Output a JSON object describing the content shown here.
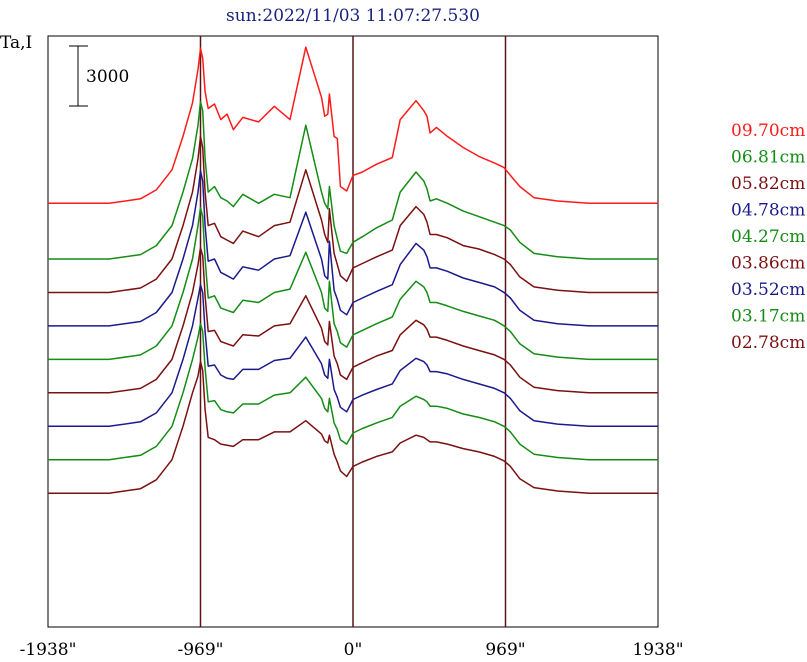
{
  "chart_data": {
    "type": "line",
    "title": "sun:2022/11/03 11:07:27.530",
    "ylabel": "Ta,I",
    "xlabel": "",
    "scale_bar_label": "3000",
    "scale_bar_value": 3000,
    "xlim": [
      -1938,
      1938
    ],
    "ylim": [
      -1000,
      52000
    ],
    "x_ticks": [
      {
        "value": -1938,
        "label": "-1938\""
      },
      {
        "value": -969,
        "label": "-969\""
      },
      {
        "value": 0,
        "label": "0\""
      },
      {
        "value": 969,
        "label": "969\""
      },
      {
        "value": 1938,
        "label": "1938\""
      }
    ],
    "vertical_lines": [
      -969,
      0,
      969
    ],
    "vertical_line_color": "#5a1414",
    "legend_position": "right",
    "x": [
      -1938,
      -1550,
      -1350,
      -1250,
      -1150,
      -1080,
      -1020,
      -985,
      -969,
      -955,
      -940,
      -920,
      -880,
      -840,
      -800,
      -760,
      -700,
      -600,
      -500,
      -400,
      -300,
      -200,
      -180,
      -160,
      -150,
      -120,
      -100,
      -80,
      -40,
      0,
      60,
      150,
      250,
      300,
      400,
      450,
      470,
      490,
      530,
      600,
      700,
      800,
      900,
      960,
      1000,
      1060,
      1150,
      1300,
      1500,
      1938
    ],
    "series": [
      {
        "name": "09.70cm",
        "color": "#ff1a1a",
        "offset": 37000,
        "values": [
          0,
          0,
          400,
          1200,
          3000,
          6000,
          9000,
          12000,
          13900,
          13000,
          10000,
          8500,
          8900,
          7500,
          8000,
          6600,
          7700,
          7300,
          8700,
          7500,
          14000,
          9500,
          7800,
          8000,
          9800,
          6000,
          5800,
          1500,
          1100,
          2500,
          2800,
          3500,
          4100,
          7500,
          9200,
          8300,
          7800,
          6300,
          6800,
          6000,
          5000,
          4200,
          3600,
          3200,
          2500,
          1500,
          500,
          200,
          0,
          0
        ]
      },
      {
        "name": "06.81cm",
        "color": "#158c15",
        "offset": 32000,
        "values": [
          0,
          0,
          400,
          1200,
          3000,
          6000,
          9000,
          12000,
          14100,
          13300,
          9000,
          6000,
          6500,
          5500,
          5200,
          4700,
          5800,
          5000,
          5800,
          5500,
          12000,
          6000,
          5000,
          4500,
          6500,
          3000,
          1800,
          700,
          500,
          1500,
          2000,
          2800,
          3500,
          6000,
          7800,
          7000,
          6300,
          5200,
          5400,
          5000,
          4300,
          3800,
          3300,
          3000,
          2600,
          1500,
          500,
          200,
          0,
          0
        ]
      },
      {
        "name": "05.82cm",
        "color": "#7b1010",
        "offset": 29000,
        "values": [
          0,
          0,
          400,
          1200,
          3000,
          6000,
          9000,
          12000,
          14000,
          13000,
          9000,
          6000,
          6200,
          5000,
          4700,
          4400,
          5500,
          5000,
          6000,
          6300,
          11000,
          6500,
          5200,
          4500,
          7500,
          3500,
          2500,
          1500,
          1000,
          2200,
          2600,
          3200,
          3800,
          6000,
          7700,
          7000,
          6300,
          5200,
          5200,
          4900,
          4200,
          3900,
          3400,
          3000,
          2500,
          1400,
          500,
          200,
          0,
          0
        ]
      },
      {
        "name": "04.78cm",
        "color": "#1a1a8c",
        "offset": 26000,
        "values": [
          0,
          0,
          400,
          1200,
          3000,
          6000,
          9000,
          12000,
          13900,
          13000,
          9000,
          5800,
          6000,
          4800,
          4500,
          4200,
          5300,
          5000,
          6000,
          6300,
          10200,
          6000,
          4500,
          4200,
          7600,
          3200,
          2400,
          1400,
          1000,
          2100,
          2500,
          3100,
          3700,
          5500,
          7400,
          6800,
          6200,
          5200,
          5200,
          4900,
          4300,
          3900,
          3500,
          3000,
          2500,
          1400,
          500,
          200,
          0,
          0
        ]
      },
      {
        "name": "04.27cm",
        "color": "#158c15",
        "offset": 23000,
        "values": [
          0,
          0,
          400,
          1200,
          3000,
          6000,
          9000,
          12000,
          13600,
          12800,
          9000,
          5500,
          5700,
          4600,
          4400,
          4200,
          5300,
          5100,
          6000,
          6300,
          9600,
          6000,
          4600,
          4300,
          7000,
          3200,
          2500,
          1500,
          1100,
          2200,
          2600,
          3200,
          3800,
          5400,
          7000,
          6500,
          6000,
          5100,
          5100,
          4800,
          4300,
          3900,
          3500,
          3000,
          2500,
          1400,
          500,
          200,
          0,
          0
        ]
      },
      {
        "name": "03.86cm",
        "color": "#7b1010",
        "offset": 20000,
        "values": [
          0,
          0,
          400,
          1200,
          3000,
          6000,
          9000,
          11500,
          13000,
          12300,
          8700,
          5500,
          5600,
          4600,
          4400,
          4200,
          5200,
          5100,
          6000,
          6200,
          8700,
          5800,
          4600,
          4300,
          6400,
          3300,
          2600,
          1600,
          1200,
          2300,
          2700,
          3300,
          3800,
          5200,
          6500,
          6100,
          5700,
          5000,
          5000,
          4700,
          4200,
          3800,
          3400,
          3000,
          2500,
          1400,
          500,
          200,
          0,
          0
        ]
      },
      {
        "name": "03.52cm",
        "color": "#1a1a8c",
        "offset": 17000,
        "values": [
          0,
          0,
          400,
          1200,
          3000,
          6000,
          9000,
          11500,
          12700,
          12000,
          8500,
          5400,
          5500,
          4600,
          4300,
          4200,
          5100,
          5100,
          5900,
          6100,
          8000,
          5600,
          4600,
          4300,
          6000,
          3300,
          2600,
          1700,
          1300,
          2400,
          2800,
          3300,
          3800,
          5000,
          6100,
          5800,
          5500,
          4900,
          4900,
          4700,
          4200,
          3800,
          3400,
          3000,
          2500,
          1400,
          500,
          200,
          0,
          0
        ]
      },
      {
        "name": "03.17cm",
        "color": "#158c15",
        "offset": 14000,
        "values": [
          0,
          0,
          400,
          1200,
          3000,
          6000,
          9000,
          11000,
          12200,
          11500,
          8200,
          5200,
          5300,
          4500,
          4300,
          4200,
          5000,
          5000,
          5800,
          6000,
          7400,
          5500,
          4600,
          4300,
          5500,
          3300,
          2700,
          1800,
          1400,
          2400,
          2800,
          3300,
          3800,
          4800,
          5700,
          5400,
          5200,
          4800,
          4800,
          4600,
          4100,
          3800,
          3400,
          3000,
          2500,
          1400,
          500,
          200,
          0,
          0
        ]
      },
      {
        "name": "02.78cm",
        "color": "#7b1010",
        "offset": 11000,
        "values": [
          0,
          0,
          400,
          1200,
          3000,
          6000,
          9000,
          10500,
          11800,
          11000,
          7500,
          5000,
          4800,
          4400,
          4300,
          4200,
          4800,
          4800,
          5500,
          5500,
          6500,
          5300,
          4700,
          4500,
          5200,
          3500,
          2800,
          2000,
          1500,
          2400,
          2800,
          3300,
          3700,
          4500,
          5200,
          5000,
          4800,
          4600,
          4600,
          4400,
          4000,
          3700,
          3300,
          2900,
          2400,
          1300,
          500,
          200,
          0,
          0
        ]
      }
    ]
  }
}
